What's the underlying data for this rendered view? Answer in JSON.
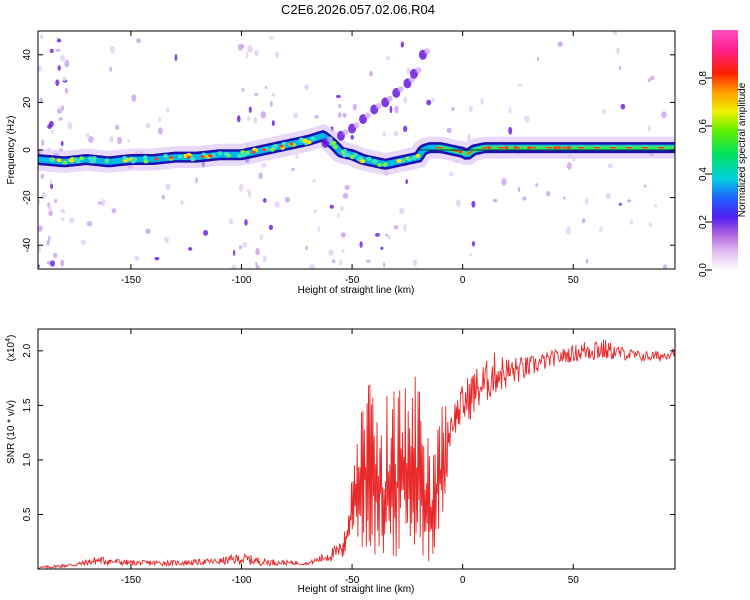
{
  "title": "C2E6.2026.057.02.06.R04",
  "colors": {
    "snr_line": "#e8292a",
    "ridge": "#1a0fb0"
  },
  "chart_data": [
    {
      "type": "heatmap",
      "id": "spectrogram",
      "xlabel": "Height of straight line (km)",
      "ylabel": "Frequency (Hz)",
      "xlim": [
        -192,
        96
      ],
      "ylim": [
        -50,
        50
      ],
      "xticks": [
        -150,
        -100,
        -50,
        0,
        50
      ],
      "yticks": [
        -40,
        -20,
        0,
        20,
        40
      ],
      "colorbar": {
        "label": "Normalized spectral amplitude",
        "range": [
          0,
          1
        ],
        "ticks": [
          0.0,
          0.2,
          0.4,
          0.6,
          0.8
        ]
      },
      "ridge": {
        "x": [
          -192,
          -180,
          -170,
          -160,
          -150,
          -140,
          -130,
          -120,
          -110,
          -100,
          -90,
          -80,
          -70,
          -63,
          -58,
          -55,
          -50,
          -45,
          -40,
          -35,
          -30,
          -25,
          -20,
          -18,
          -15,
          -10,
          -5,
          0,
          2,
          5,
          10,
          20,
          40,
          60,
          80,
          96
        ],
        "y": [
          -4,
          -5,
          -4,
          -5,
          -4,
          -4,
          -3,
          -3,
          -2,
          -2,
          0,
          2,
          4,
          6,
          2,
          -1,
          -2,
          -4,
          -5,
          -6,
          -5,
          -4,
          -3,
          0,
          1,
          1,
          0,
          -1,
          -2,
          0,
          1,
          1,
          1,
          1,
          1,
          1
        ]
      },
      "branch": {
        "x": [
          -62,
          -55,
          -50,
          -45,
          -40,
          -35,
          -30,
          -25,
          -22,
          -18
        ],
        "y": [
          3,
          6,
          9,
          13,
          17,
          20,
          24,
          28,
          32,
          40
        ]
      }
    },
    {
      "type": "line",
      "id": "snr",
      "xlabel": "Height of straight line (km)",
      "ylabel": "SNR (10 * v/v)",
      "scale_label": "(x10",
      "scale_exp": "4",
      "scale_close": ")",
      "xlim": [
        -192,
        96
      ],
      "ylim": [
        0,
        2.2
      ],
      "xticks": [
        -150,
        -100,
        -50,
        0,
        50
      ],
      "yticks": [
        0.5,
        1.0,
        1.5,
        2.0
      ],
      "envelope": {
        "x": [
          -192,
          -175,
          -165,
          -150,
          -130,
          -110,
          -100,
          -90,
          -70,
          -55,
          -52,
          -50,
          -45,
          -40,
          -30,
          -20,
          -15,
          -10,
          -5,
          0,
          5,
          10,
          15,
          20,
          30,
          40,
          50,
          60,
          70,
          80,
          90,
          96
        ],
        "low": [
          0.0,
          0.02,
          0.04,
          0.03,
          0.03,
          0.04,
          0.04,
          0.03,
          0.04,
          0.08,
          0.15,
          0.3,
          0.15,
          0.1,
          0.1,
          0.15,
          0.05,
          0.3,
          1.2,
          1.3,
          1.4,
          1.5,
          1.6,
          1.65,
          1.75,
          1.85,
          1.9,
          1.9,
          1.92,
          1.9,
          1.9,
          1.95
        ],
        "high": [
          0.02,
          0.06,
          0.12,
          0.08,
          0.08,
          0.1,
          0.15,
          0.1,
          0.06,
          0.25,
          0.55,
          1.0,
          1.9,
          1.6,
          1.7,
          1.9,
          1.2,
          1.6,
          1.5,
          1.7,
          1.85,
          1.9,
          2.0,
          1.95,
          1.95,
          2.0,
          2.05,
          2.15,
          2.05,
          2.0,
          2.0,
          2.05
        ]
      }
    }
  ]
}
